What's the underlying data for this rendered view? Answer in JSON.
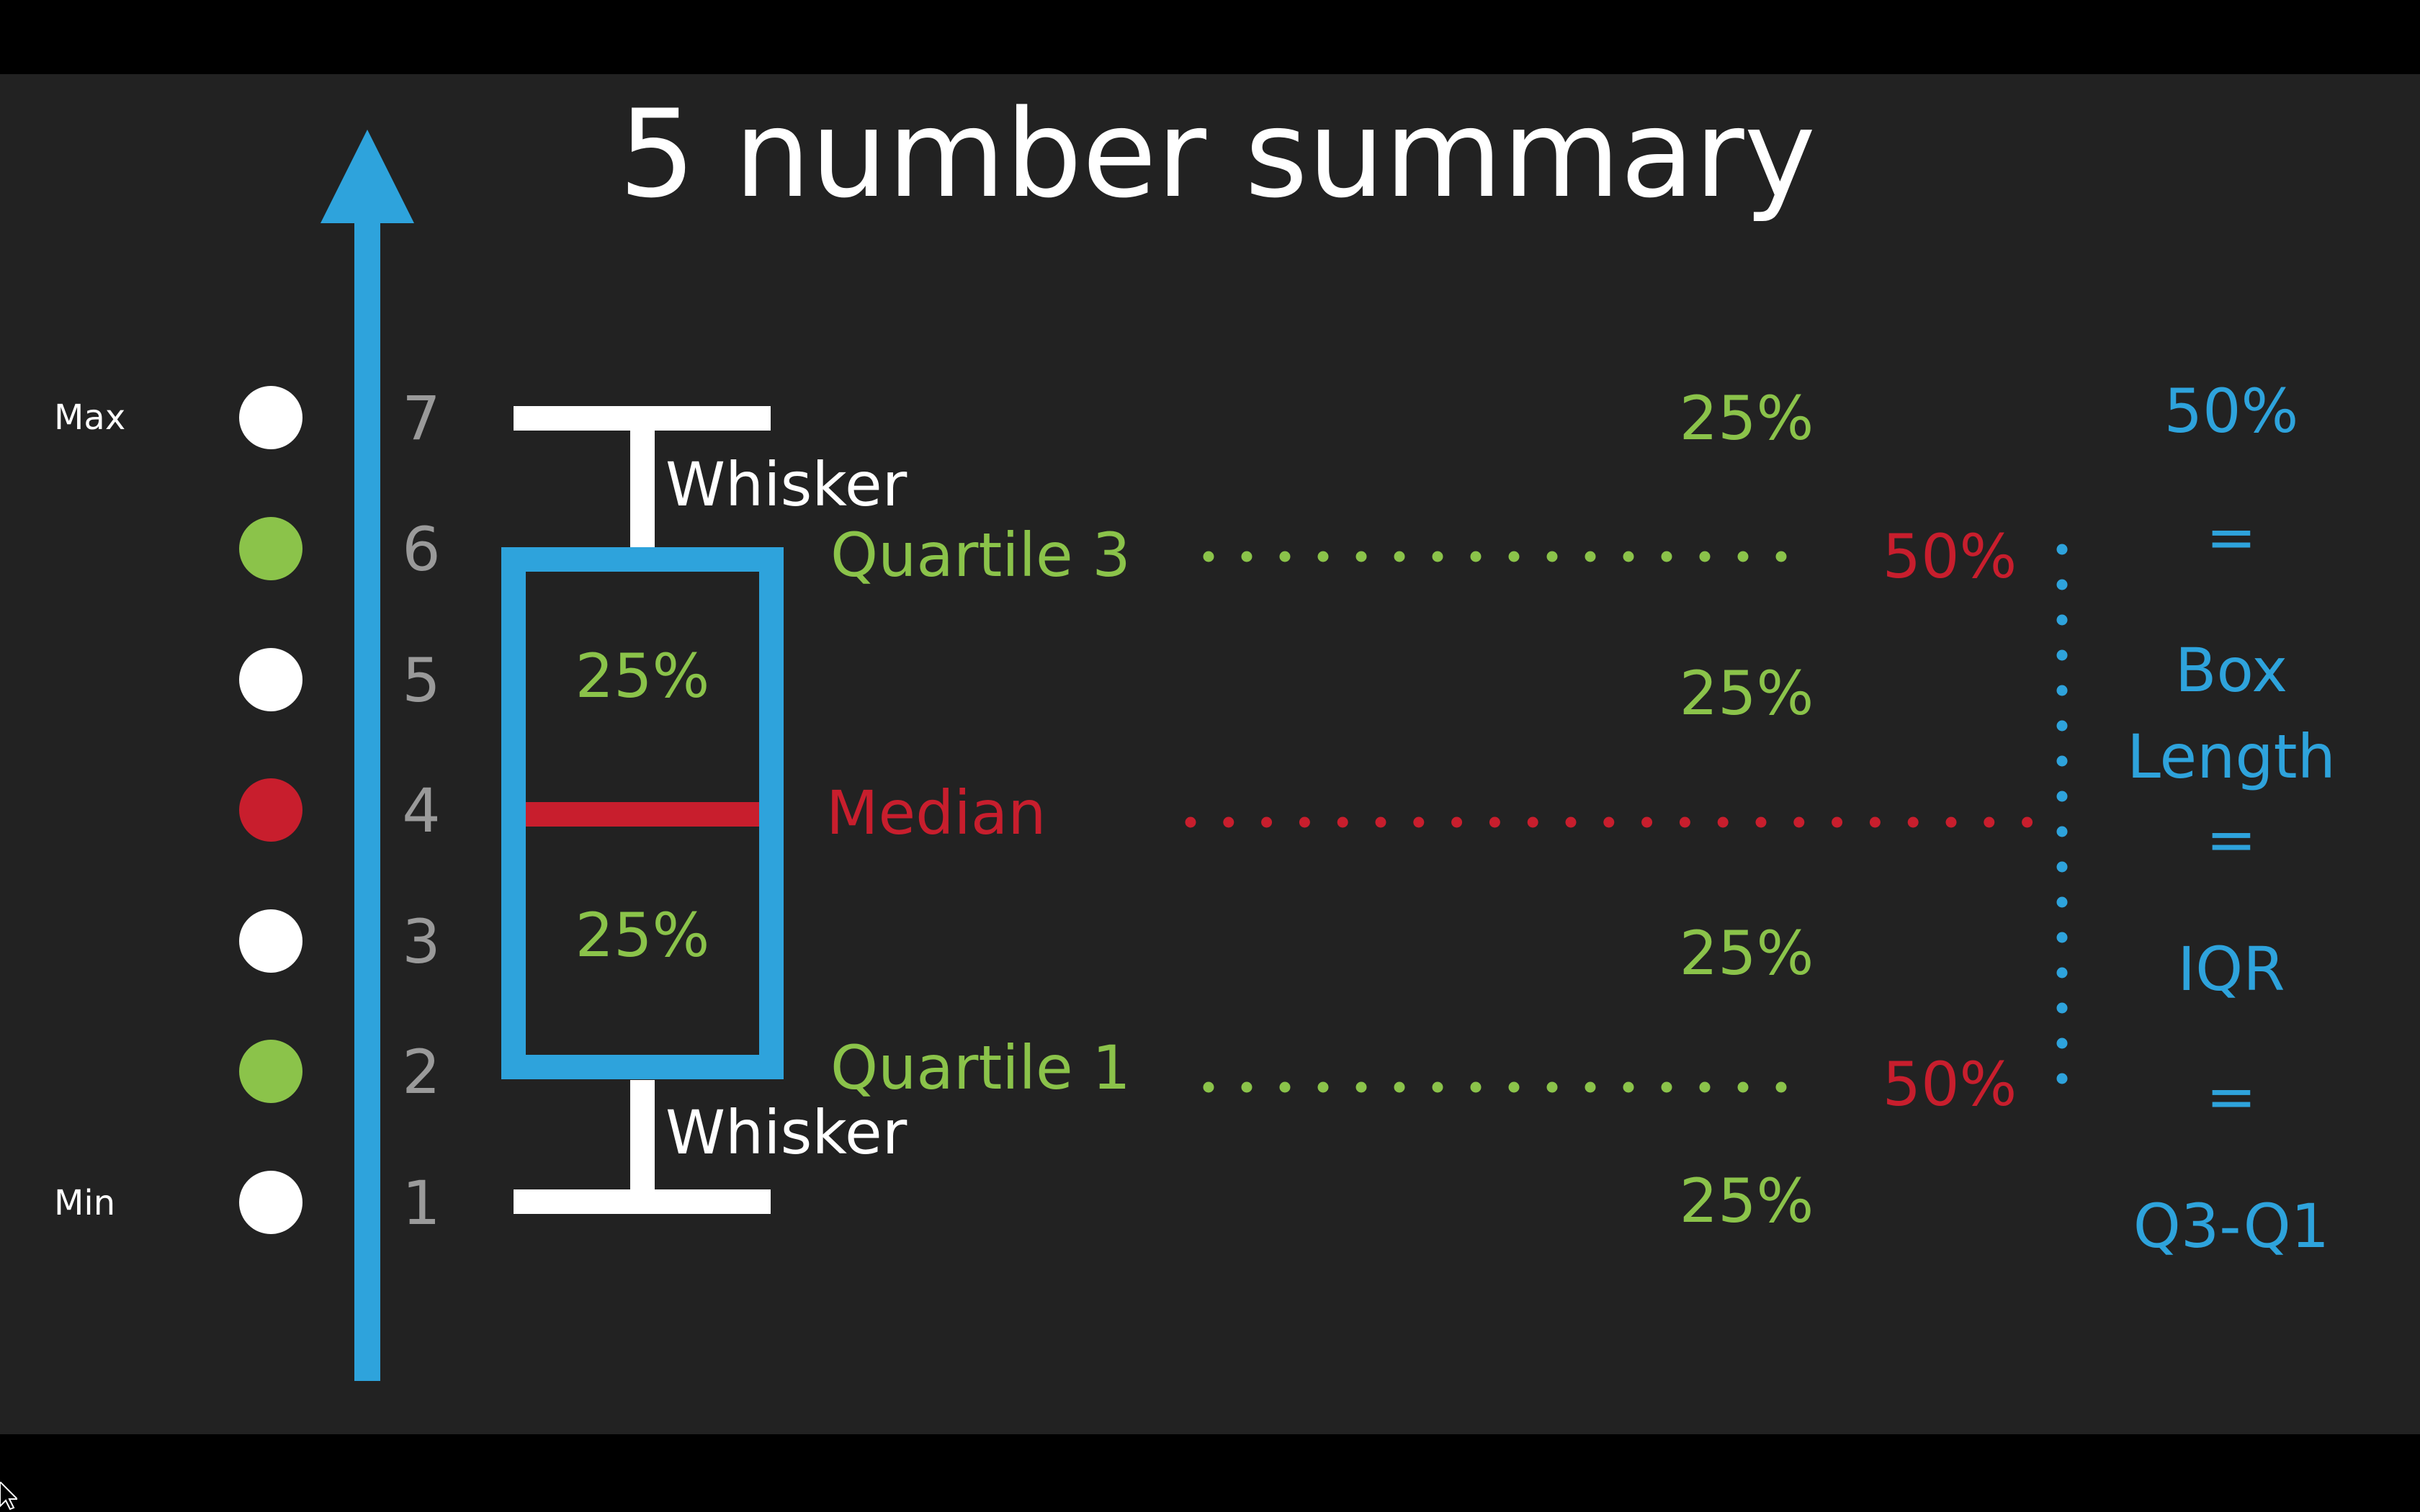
{
  "title": "5 number summary",
  "axis": {
    "ticks": [
      "1",
      "2",
      "3",
      "4",
      "5",
      "6",
      "7"
    ],
    "max_label": "Max",
    "min_label": "Min"
  },
  "dots": [
    {
      "value": "1",
      "color": "#ffffff"
    },
    {
      "value": "2",
      "color": "#8bc34a"
    },
    {
      "value": "3",
      "color": "#ffffff"
    },
    {
      "value": "4",
      "color": "#c81e2d"
    },
    {
      "value": "5",
      "color": "#ffffff"
    },
    {
      "value": "6",
      "color": "#8bc34a"
    },
    {
      "value": "7",
      "color": "#ffffff"
    }
  ],
  "box": {
    "upper_pct": "25%",
    "lower_pct": "25%",
    "whisker_top": "Whisker",
    "whisker_bottom": "Whisker"
  },
  "labels": {
    "quartile3": "Quartile 3",
    "median": "Median",
    "quartile1": "Quartile 1"
  },
  "segments": {
    "top": "25%",
    "upper_mid": "25%",
    "lower_mid": "25%",
    "bottom": "25%"
  },
  "halves": {
    "upper": "50%",
    "lower": "50%"
  },
  "iqr": {
    "pct": "50%",
    "eq1": "=",
    "box": "Box",
    "length": "Length",
    "eq2": "=",
    "iqr": "IQR",
    "eq3": "=",
    "formula": "Q3-Q1"
  },
  "colors": {
    "background": "#222222",
    "blue": "#2ea3dc",
    "green": "#8bc34a",
    "red": "#c81e2d",
    "white": "#ffffff",
    "gray": "#9a9a9a"
  }
}
